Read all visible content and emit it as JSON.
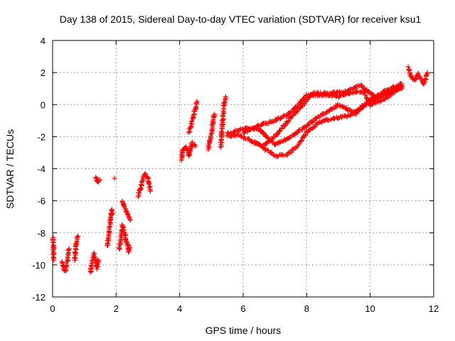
{
  "chart_data": {
    "type": "scatter",
    "title": "Day 138 of 2015, Sidereal Day-to-day VTEC variation (SDTVAR) for receiver ksu1",
    "xlabel": "GPS time / hours",
    "ylabel": "SDTVAR / TECUs",
    "xlim": [
      0,
      12
    ],
    "ylim": [
      -12,
      4
    ],
    "xticks": [
      "0",
      "2",
      "4",
      "6",
      "8",
      "10",
      "12"
    ],
    "yticks": [
      "-12",
      "-10",
      "-8",
      "-6",
      "-4",
      "-2",
      "0",
      "2",
      "4"
    ],
    "grid": true,
    "marker": "+",
    "color": "#ff0000",
    "series": [
      {
        "name": "SDTVAR",
        "segments": [
          [
            [
              0.02,
              -8.3
            ],
            [
              0.03,
              -9.4
            ],
            [
              0.04,
              -9.7
            ]
          ],
          [
            [
              0.3,
              -9.8
            ],
            [
              0.35,
              -10.2
            ],
            [
              0.4,
              -10.4
            ],
            [
              0.45,
              -9.9
            ],
            [
              0.5,
              -9.3
            ],
            [
              0.52,
              -9.0
            ]
          ],
          [
            [
              0.7,
              -9.7
            ],
            [
              0.72,
              -9.2
            ],
            [
              0.75,
              -8.6
            ],
            [
              0.8,
              -8.2
            ]
          ],
          [
            [
              1.2,
              -10.5
            ],
            [
              1.25,
              -9.8
            ],
            [
              1.3,
              -9.3
            ],
            [
              1.35,
              -9.8
            ],
            [
              1.4,
              -10.2
            ],
            [
              1.45,
              -9.7
            ]
          ],
          [
            [
              1.35,
              -4.5
            ],
            [
              1.42,
              -4.8
            ],
            [
              1.5,
              -4.7
            ]
          ],
          [
            [
              1.72,
              -8.8
            ],
            [
              1.78,
              -8.0
            ],
            [
              1.82,
              -7.2
            ],
            [
              1.86,
              -6.6
            ],
            [
              1.9,
              -6.8
            ]
          ],
          [
            [
              1.95,
              -4.6
            ]
          ],
          [
            [
              2.1,
              -9.0
            ],
            [
              2.15,
              -8.4
            ],
            [
              2.2,
              -7.5
            ],
            [
              2.3,
              -8.2
            ],
            [
              2.4,
              -9.2
            ],
            [
              2.42,
              -8.8
            ]
          ],
          [
            [
              2.2,
              -6.0
            ],
            [
              2.3,
              -6.6
            ],
            [
              2.45,
              -7.2
            ]
          ],
          [
            [
              2.7,
              -5.7
            ],
            [
              2.8,
              -5.0
            ],
            [
              2.9,
              -4.3
            ],
            [
              3.0,
              -4.6
            ],
            [
              3.08,
              -5.4
            ]
          ],
          [
            [
              4.05,
              -3.5
            ],
            [
              4.1,
              -2.8
            ],
            [
              4.2,
              -2.6
            ],
            [
              4.3,
              -3.2
            ],
            [
              4.38,
              -2.4
            ],
            [
              4.5,
              -2.6
            ]
          ],
          [
            [
              4.3,
              -1.7
            ],
            [
              4.4,
              -1.0
            ],
            [
              4.5,
              -0.2
            ],
            [
              4.55,
              0.2
            ]
          ],
          [
            [
              4.9,
              -2.8
            ],
            [
              5.0,
              -1.8
            ],
            [
              5.05,
              -1.0
            ],
            [
              5.1,
              -0.6
            ]
          ],
          [
            [
              5.3,
              -2.6
            ],
            [
              5.35,
              -1.2
            ],
            [
              5.4,
              0.0
            ],
            [
              5.45,
              0.5
            ]
          ],
          [
            [
              5.5,
              -2.0
            ],
            [
              5.8,
              -1.9
            ],
            [
              6.2,
              -2.2
            ],
            [
              6.5,
              -2.5
            ],
            [
              7.0,
              -3.2
            ],
            [
              7.4,
              -3.1
            ],
            [
              7.7,
              -2.6
            ],
            [
              8.0,
              -1.7
            ],
            [
              8.5,
              -1.0
            ],
            [
              9.0,
              -0.8
            ],
            [
              9.5,
              -0.6
            ],
            [
              10.0,
              0.2
            ],
            [
              10.5,
              0.7
            ],
            [
              11.0,
              1.1
            ]
          ],
          [
            [
              5.5,
              -1.8
            ],
            [
              6.0,
              -1.5
            ],
            [
              6.5,
              -1.5
            ],
            [
              7.0,
              -2.5
            ],
            [
              7.5,
              -2.0
            ],
            [
              8.0,
              -1.3
            ],
            [
              8.5,
              -0.6
            ],
            [
              9.0,
              0.0
            ],
            [
              9.5,
              -0.5
            ],
            [
              10.0,
              0.3
            ],
            [
              10.5,
              0.9
            ],
            [
              11.0,
              1.3
            ]
          ],
          [
            [
              6.0,
              -1.8
            ],
            [
              6.5,
              -1.3
            ],
            [
              7.0,
              -1.0
            ],
            [
              7.5,
              -0.5
            ],
            [
              8.0,
              0.6
            ],
            [
              8.5,
              0.6
            ],
            [
              9.0,
              0.5
            ],
            [
              9.5,
              0.8
            ],
            [
              9.8,
              0.8
            ],
            [
              10.0,
              0.0
            ],
            [
              10.5,
              0.4
            ],
            [
              11.0,
              1.2
            ]
          ],
          [
            [
              6.3,
              -2.3
            ],
            [
              6.6,
              -2.6
            ],
            [
              7.0,
              -2.0
            ],
            [
              7.5,
              -0.8
            ],
            [
              7.8,
              -0.2
            ],
            [
              8.2,
              0.7
            ],
            [
              8.7,
              0.7
            ],
            [
              9.2,
              0.8
            ],
            [
              9.7,
              1.2
            ],
            [
              10.2,
              0.4
            ],
            [
              10.6,
              0.8
            ],
            [
              11.0,
              1.0
            ]
          ],
          [
            [
              11.2,
              2.3
            ],
            [
              11.3,
              1.7
            ],
            [
              11.4,
              1.5
            ],
            [
              11.5,
              1.9
            ],
            [
              11.6,
              1.6
            ],
            [
              11.7,
              1.3
            ],
            [
              11.8,
              2.0
            ]
          ]
        ]
      }
    ]
  }
}
